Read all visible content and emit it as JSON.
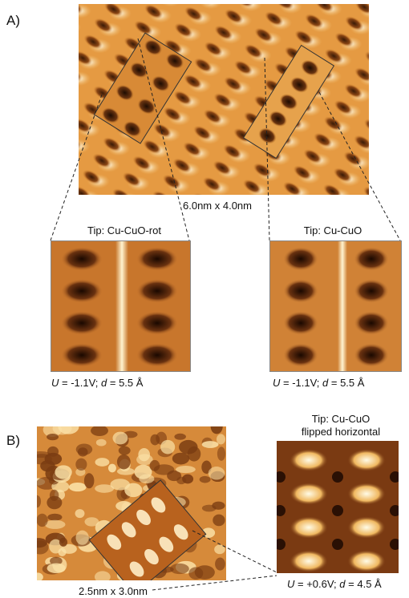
{
  "panel_a": {
    "label": "A)",
    "scale": "6.0nm x 4.0nm",
    "left_sim": {
      "tip": "Tip: Cu-CuO-rot",
      "U_label": "U",
      "U_value": " = -1.1V; ",
      "d_label": "d",
      "d_value": " = 5.5 Å"
    },
    "right_sim": {
      "tip": "Tip: Cu-CuO",
      "U_label": "U",
      "U_value": " = -1.1V; ",
      "d_label": "d",
      "d_value": " = 5.5 Å"
    }
  },
  "panel_b": {
    "label": "B)",
    "scale": "2.5nm x 3.0nm",
    "sim": {
      "tip_line1": "Tip: Cu-CuO",
      "tip_line2": "flipped horizontal",
      "U_label": "U",
      "U_value": " = +0.6V; ",
      "d_label": "d",
      "d_value": " = 4.5 Å"
    }
  },
  "colors": {
    "bright": "#fff6d6",
    "mid": "#e49a3c",
    "dark": "#5a2a0c",
    "background": "#ffffff"
  }
}
